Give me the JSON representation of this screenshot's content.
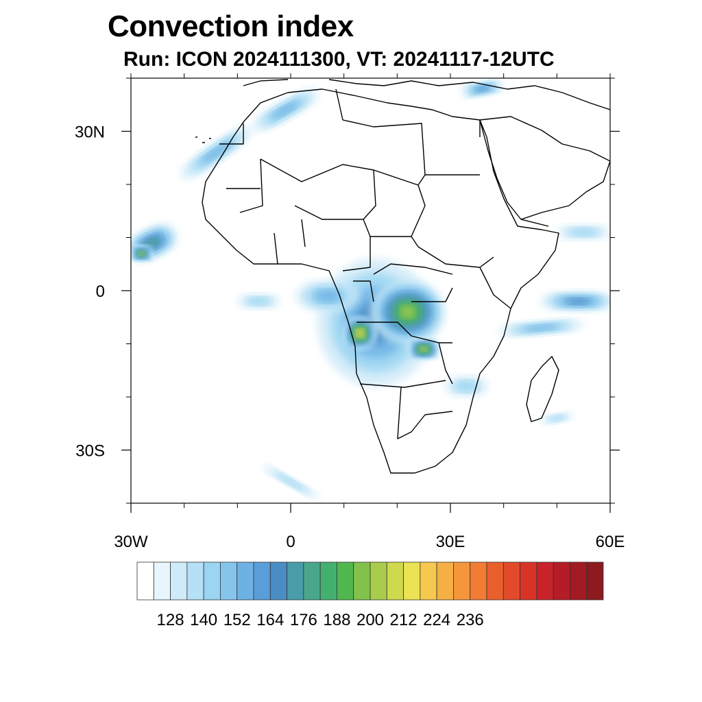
{
  "title": "Convection index",
  "subtitle": "Run: ICON 2024111300,  VT: 20241117-12UTC",
  "map": {
    "projection": "cylindrical equidistant",
    "lon_range": [
      -30,
      60
    ],
    "lat_range": [
      -40,
      40
    ],
    "lat_ticks": [
      {
        "value": 30,
        "label": "30N"
      },
      {
        "value": 0,
        "label": "0"
      },
      {
        "value": -30,
        "label": "30S"
      }
    ],
    "lon_ticks": [
      {
        "value": -30,
        "label": "30W"
      },
      {
        "value": 0,
        "label": "0"
      },
      {
        "value": 30,
        "label": "30E"
      },
      {
        "value": 60,
        "label": "60E"
      }
    ],
    "minor_lon_step": 10,
    "minor_lat_step": 10
  },
  "colorbar": {
    "colors": [
      "#ffffff",
      "#e8f5fc",
      "#cfeaf8",
      "#b5e0f6",
      "#9ad5f2",
      "#85c5ec",
      "#6eb2e4",
      "#5a9ed9",
      "#4a8dc4",
      "#4a9ca8",
      "#4aa68a",
      "#43b070",
      "#50b84f",
      "#82c24c",
      "#a9cc4c",
      "#cfd94d",
      "#ece354",
      "#f6c84e",
      "#f5b045",
      "#f5963c",
      "#f27c34",
      "#ea602c",
      "#e14a2a",
      "#d93328",
      "#c8232a",
      "#b41d27",
      "#a21a23",
      "#8c1a1e"
    ],
    "labels": [
      "128",
      "140",
      "152",
      "164",
      "176",
      "188",
      "200",
      "212",
      "224",
      "236"
    ],
    "label_start_index": 1,
    "label_every": 2
  },
  "precip_regions": [
    {
      "lon": 16,
      "lat": -6,
      "rx": 11,
      "ry": 12,
      "level": 3,
      "rot": 0
    },
    {
      "lon": 22,
      "lat": -4,
      "rx": 7,
      "ry": 6,
      "level": 6,
      "rot": 0
    },
    {
      "lon": 13,
      "lat": -8,
      "rx": 3,
      "ry": 3,
      "level": 8,
      "rot": 0
    },
    {
      "lon": 25,
      "lat": -11,
      "rx": 3,
      "ry": 2,
      "level": 7,
      "rot": 0
    },
    {
      "lon": 7,
      "lat": -1,
      "rx": 6,
      "ry": 3,
      "level": 2,
      "rot": 0
    },
    {
      "lon": -26,
      "lat": 9,
      "rx": 5,
      "ry": 3,
      "level": 4,
      "rot": -25
    },
    {
      "lon": -28,
      "lat": 7,
      "rx": 2,
      "ry": 1.5,
      "level": 7,
      "rot": 0
    },
    {
      "lon": -14,
      "lat": 26,
      "rx": 8,
      "ry": 2,
      "level": 2,
      "rot": -35
    },
    {
      "lon": -1,
      "lat": 34,
      "rx": 7,
      "ry": 2,
      "level": 2,
      "rot": -30
    },
    {
      "lon": 36,
      "lat": 38,
      "rx": 4,
      "ry": 1.5,
      "level": 3,
      "rot": -10
    },
    {
      "lon": 54,
      "lat": -2,
      "rx": 7,
      "ry": 2,
      "level": 3,
      "rot": 0
    },
    {
      "lon": 47,
      "lat": -7,
      "rx": 8,
      "ry": 1.5,
      "level": 2,
      "rot": -5
    },
    {
      "lon": 55,
      "lat": 11,
      "rx": 5,
      "ry": 1.5,
      "level": 1,
      "rot": 0
    },
    {
      "lon": 33,
      "lat": -18,
      "rx": 4,
      "ry": 2,
      "level": 1,
      "rot": 0
    },
    {
      "lon": 50,
      "lat": -24,
      "rx": 3,
      "ry": 1,
      "level": 1,
      "rot": -10
    },
    {
      "lon": 0,
      "lat": -36,
      "rx": 6,
      "ry": 1,
      "level": 1,
      "rot": 30
    },
    {
      "lon": -6,
      "lat": -2,
      "rx": 4,
      "ry": 1.5,
      "level": 1,
      "rot": 0
    }
  ]
}
